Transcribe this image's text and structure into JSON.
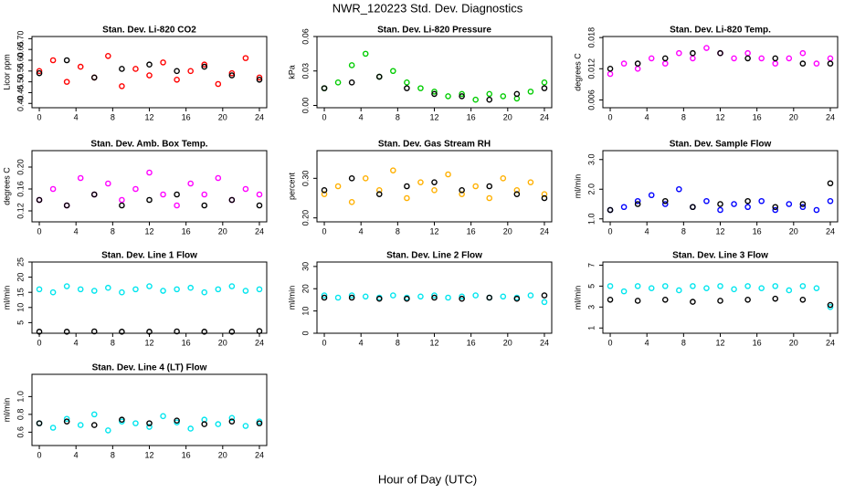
{
  "title": "NWR_120223  Std. Dev. Diagnostics",
  "xlabel": "Hour of Day (UTC)",
  "chart_data": [
    {
      "type": "scatter",
      "title": "Stan. Dev. Li-820 CO2",
      "ylabel": "Licor ppm",
      "xlim": [
        -0.8,
        24.8
      ],
      "xticks": [
        0,
        4,
        8,
        12,
        16,
        20,
        24
      ],
      "ylim": [
        0.38,
        0.71
      ],
      "yticks": [
        {
          "value": 0.4,
          "label": "0.40"
        },
        0.45,
        {
          "value": 0.5,
          "label": "0.50"
        },
        0.55,
        {
          "value": 0.6,
          "label": "0.60"
        },
        0.65,
        {
          "value": 0.7,
          "label": "0.70"
        }
      ],
      "series": [
        {
          "color": "#ff0000",
          "x": [
            0,
            1.5,
            3,
            4.5,
            6,
            7.5,
            9,
            10.5,
            12,
            13.5,
            15,
            16.5,
            18,
            19.5,
            21,
            22.5,
            24
          ],
          "values": [
            0.55,
            0.6,
            0.5,
            0.57,
            0.52,
            0.62,
            0.48,
            0.56,
            0.53,
            0.59,
            0.51,
            0.55,
            0.58,
            0.49,
            0.54,
            0.61,
            0.52
          ]
        },
        {
          "color": "#000000",
          "x": [
            0,
            3,
            6,
            9,
            12,
            15,
            18,
            21,
            24
          ],
          "values": [
            0.54,
            0.6,
            0.52,
            0.56,
            0.58,
            0.55,
            0.57,
            0.53,
            0.51
          ]
        }
      ]
    },
    {
      "type": "scatter",
      "title": "Stan. Dev. Li-820 Pressure",
      "ylabel": "kPa",
      "xlim": [
        -0.8,
        24.8
      ],
      "xticks": [
        0,
        4,
        8,
        12,
        16,
        20,
        24
      ],
      "ylim": [
        -0.002,
        0.06
      ],
      "yticks": [
        {
          "value": 0,
          "label": "0.00"
        },
        0.03,
        0.06
      ],
      "series": [
        {
          "color": "#00cc00",
          "x": [
            0,
            1.5,
            3,
            4.5,
            6,
            7.5,
            9,
            10.5,
            12,
            13.5,
            15,
            16.5,
            18,
            19.5,
            21,
            22.5,
            24
          ],
          "values": [
            0.015,
            0.02,
            0.035,
            0.045,
            0.025,
            0.03,
            0.02,
            0.015,
            0.012,
            0.008,
            0.01,
            0.005,
            0.01,
            0.008,
            0.006,
            0.012,
            0.02
          ]
        },
        {
          "color": "#000000",
          "x": [
            0,
            3,
            6,
            9,
            12,
            15,
            18,
            21,
            24
          ],
          "values": [
            0.015,
            0.02,
            0.025,
            0.015,
            0.01,
            0.008,
            0.005,
            0.01,
            0.015
          ]
        }
      ]
    },
    {
      "type": "scatter",
      "title": "Stan. Dev. Li-820 Temp.",
      "ylabel": "degrees C",
      "xlim": [
        -0.8,
        24.8
      ],
      "xticks": [
        0,
        4,
        8,
        12,
        16,
        20,
        24
      ],
      "ylim": [
        0.0045,
        0.0182
      ],
      "yticks": [
        0.006,
        0.012,
        0.018
      ],
      "series": [
        {
          "color": "#ff00ff",
          "x": [
            0,
            1.5,
            3,
            4.5,
            6,
            7.5,
            9,
            10.5,
            12,
            13.5,
            15,
            16.5,
            18,
            19.5,
            21,
            22.5,
            24
          ],
          "values": [
            0.011,
            0.013,
            0.012,
            0.014,
            0.013,
            0.015,
            0.014,
            0.016,
            0.015,
            0.014,
            0.015,
            0.014,
            0.013,
            0.014,
            0.015,
            0.013,
            0.014
          ]
        },
        {
          "color": "#000000",
          "x": [
            0,
            3,
            6,
            9,
            12,
            15,
            18,
            21,
            24
          ],
          "values": [
            0.012,
            0.013,
            0.014,
            0.015,
            0.015,
            0.014,
            0.014,
            0.013,
            0.013
          ]
        }
      ]
    },
    {
      "type": "scatter",
      "title": "Stan. Dev. Amb. Box Temp.",
      "ylabel": "degrees C",
      "xlim": [
        -0.8,
        24.8
      ],
      "xticks": [
        0,
        4,
        8,
        12,
        16,
        20,
        24
      ],
      "ylim": [
        0.1,
        0.23
      ],
      "yticks": [
        0.12,
        0.16,
        {
          "value": 0.2,
          "label": "0.20"
        }
      ],
      "series": [
        {
          "color": "#ff00ff",
          "x": [
            0,
            1.5,
            3,
            4.5,
            6,
            7.5,
            9,
            10.5,
            12,
            13.5,
            15,
            16.5,
            18,
            19.5,
            21,
            22.5,
            24
          ],
          "values": [
            0.14,
            0.16,
            0.13,
            0.18,
            0.15,
            0.17,
            0.14,
            0.16,
            0.19,
            0.15,
            0.13,
            0.17,
            0.15,
            0.18,
            0.14,
            0.16,
            0.15
          ]
        },
        {
          "color": "#000000",
          "x": [
            0,
            3,
            6,
            9,
            12,
            15,
            18,
            21,
            24
          ],
          "values": [
            0.14,
            0.13,
            0.15,
            0.13,
            0.14,
            0.15,
            0.13,
            0.14,
            0.13
          ]
        }
      ]
    },
    {
      "type": "scatter",
      "title": "Stan. Dev. Gas Stream RH",
      "ylabel": "percent",
      "xlim": [
        -0.8,
        24.8
      ],
      "xticks": [
        0,
        4,
        8,
        12,
        16,
        20,
        24
      ],
      "ylim": [
        0.19,
        0.37
      ],
      "yticks": [
        {
          "value": 0.2,
          "label": "0.20"
        },
        {
          "value": 0.3,
          "label": "0.30"
        }
      ],
      "series": [
        {
          "color": "#ffb000",
          "x": [
            0,
            1.5,
            3,
            4.5,
            6,
            7.5,
            9,
            10.5,
            12,
            13.5,
            15,
            16.5,
            18,
            19.5,
            21,
            22.5,
            24
          ],
          "values": [
            0.26,
            0.28,
            0.24,
            0.3,
            0.27,
            0.32,
            0.25,
            0.29,
            0.27,
            0.31,
            0.26,
            0.28,
            0.25,
            0.3,
            0.27,
            0.29,
            0.26
          ]
        },
        {
          "color": "#000000",
          "x": [
            0,
            3,
            6,
            9,
            12,
            15,
            18,
            21,
            24
          ],
          "values": [
            0.27,
            0.3,
            0.26,
            0.28,
            0.29,
            0.27,
            0.28,
            0.26,
            0.25
          ]
        }
      ]
    },
    {
      "type": "scatter",
      "title": "Stan. Dev. Sample Flow",
      "ylabel": "ml/min",
      "xlim": [
        -0.8,
        24.8
      ],
      "xticks": [
        0,
        4,
        8,
        12,
        16,
        20,
        24
      ],
      "ylim": [
        0.9,
        3.3
      ],
      "yticks": [
        {
          "value": 1,
          "label": "1.0"
        },
        {
          "value": 2,
          "label": "2.0"
        },
        {
          "value": 3,
          "label": "3.0"
        }
      ],
      "series": [
        {
          "color": "#0000ff",
          "x": [
            0,
            1.5,
            3,
            4.5,
            6,
            7.5,
            9,
            10.5,
            12,
            13.5,
            15,
            16.5,
            18,
            19.5,
            21,
            22.5,
            24
          ],
          "values": [
            1.3,
            1.4,
            1.6,
            1.8,
            1.5,
            2,
            1.4,
            1.6,
            1.3,
            1.5,
            1.4,
            1.6,
            1.3,
            1.5,
            1.4,
            1.3,
            1.6
          ]
        },
        {
          "color": "#000000",
          "x": [
            0,
            3,
            6,
            9,
            12,
            15,
            18,
            21,
            24
          ],
          "values": [
            1.3,
            1.5,
            1.6,
            1.4,
            1.5,
            1.6,
            1.4,
            1.5,
            2.2
          ]
        }
      ]
    },
    {
      "type": "scatter",
      "title": "Stan. Dev. Line 1 Flow",
      "ylabel": "ml/min",
      "xlim": [
        -0.8,
        24.8
      ],
      "xticks": [
        0,
        4,
        8,
        12,
        16,
        20,
        24
      ],
      "ylim": [
        1.5,
        25
      ],
      "yticks": [
        5,
        10,
        15,
        20,
        25
      ],
      "series": [
        {
          "color": "#00e5ee",
          "x": [
            0,
            1.5,
            3,
            4.5,
            6,
            7.5,
            9,
            10.5,
            12,
            13.5,
            15,
            16.5,
            18,
            19.5,
            21,
            22.5,
            24
          ],
          "values": [
            16,
            15,
            17,
            16,
            15.5,
            16.5,
            15,
            16,
            17,
            15.5,
            16,
            16.5,
            15,
            16,
            17,
            15.5,
            16
          ]
        },
        {
          "color": "#000000",
          "x": [
            0,
            3,
            6,
            9,
            12,
            15,
            18,
            21,
            24
          ],
          "values": [
            2,
            2,
            2.1,
            2,
            2,
            2.1,
            2,
            2,
            2.2
          ]
        }
      ]
    },
    {
      "type": "scatter",
      "title": "Stan. Dev. Line 2 Flow",
      "ylabel": "ml/min",
      "xlim": [
        -0.8,
        24.8
      ],
      "xticks": [
        0,
        4,
        8,
        12,
        16,
        20,
        24
      ],
      "ylim": [
        0,
        32
      ],
      "yticks": [
        0,
        10,
        20,
        30
      ],
      "series": [
        {
          "color": "#00e5ee",
          "x": [
            0,
            1.5,
            3,
            4.5,
            6,
            7.5,
            9,
            10.5,
            12,
            13.5,
            15,
            16.5,
            18,
            19.5,
            21,
            22.5,
            24
          ],
          "values": [
            17,
            16,
            17,
            16.5,
            16,
            17,
            16,
            16.5,
            17,
            16,
            16.5,
            17,
            16,
            16.5,
            16,
            17,
            14
          ]
        },
        {
          "color": "#000000",
          "x": [
            0,
            3,
            6,
            9,
            12,
            15,
            18,
            21,
            24
          ],
          "values": [
            16,
            16,
            15.5,
            15.5,
            16,
            15.5,
            16,
            15.5,
            17
          ]
        }
      ]
    },
    {
      "type": "scatter",
      "title": "Stan. Dev. Line 3 Flow",
      "ylabel": "ml/min",
      "xlim": [
        -0.8,
        24.8
      ],
      "xticks": [
        0,
        4,
        8,
        12,
        16,
        20,
        24
      ],
      "ylim": [
        0.5,
        7.3
      ],
      "yticks": [
        1,
        3,
        5,
        7
      ],
      "series": [
        {
          "color": "#00e5ee",
          "x": [
            0,
            1.5,
            3,
            4.5,
            6,
            7.5,
            9,
            10.5,
            12,
            13.5,
            15,
            16.5,
            18,
            19.5,
            21,
            22.5,
            24
          ],
          "values": [
            5,
            4.5,
            5,
            4.8,
            5,
            4.6,
            5,
            4.8,
            5,
            4.7,
            5,
            4.8,
            5,
            4.6,
            5,
            4.8,
            3
          ]
        },
        {
          "color": "#000000",
          "x": [
            0,
            3,
            6,
            9,
            12,
            15,
            18,
            21,
            24
          ],
          "values": [
            3.7,
            3.6,
            3.7,
            3.5,
            3.6,
            3.7,
            3.8,
            3.7,
            3.2
          ]
        }
      ]
    },
    {
      "type": "scatter",
      "title": "Stan. Dev. Line 4 (LT) Flow",
      "ylabel": "ml/min",
      "xlim": [
        -0.8,
        24.8
      ],
      "xticks": [
        0,
        4,
        8,
        12,
        16,
        20,
        24
      ],
      "ylim": [
        0.45,
        1.25
      ],
      "yticks": [
        0.6,
        0.8,
        {
          "value": 1,
          "label": "1.0"
        }
      ],
      "series": [
        {
          "color": "#00e5ee",
          "x": [
            0,
            1.5,
            3,
            4.5,
            6,
            7.5,
            9,
            10.5,
            12,
            13.5,
            15,
            16.5,
            18,
            19.5,
            21,
            22.5,
            24
          ],
          "values": [
            0.7,
            0.65,
            0.75,
            0.68,
            0.8,
            0.62,
            0.72,
            0.7,
            0.66,
            0.78,
            0.71,
            0.64,
            0.74,
            0.69,
            0.76,
            0.67,
            0.72
          ]
        },
        {
          "color": "#000000",
          "x": [
            0,
            3,
            6,
            9,
            12,
            15,
            18,
            21,
            24
          ],
          "values": [
            0.7,
            0.72,
            0.68,
            0.74,
            0.7,
            0.73,
            0.69,
            0.72,
            0.7
          ]
        }
      ]
    }
  ]
}
